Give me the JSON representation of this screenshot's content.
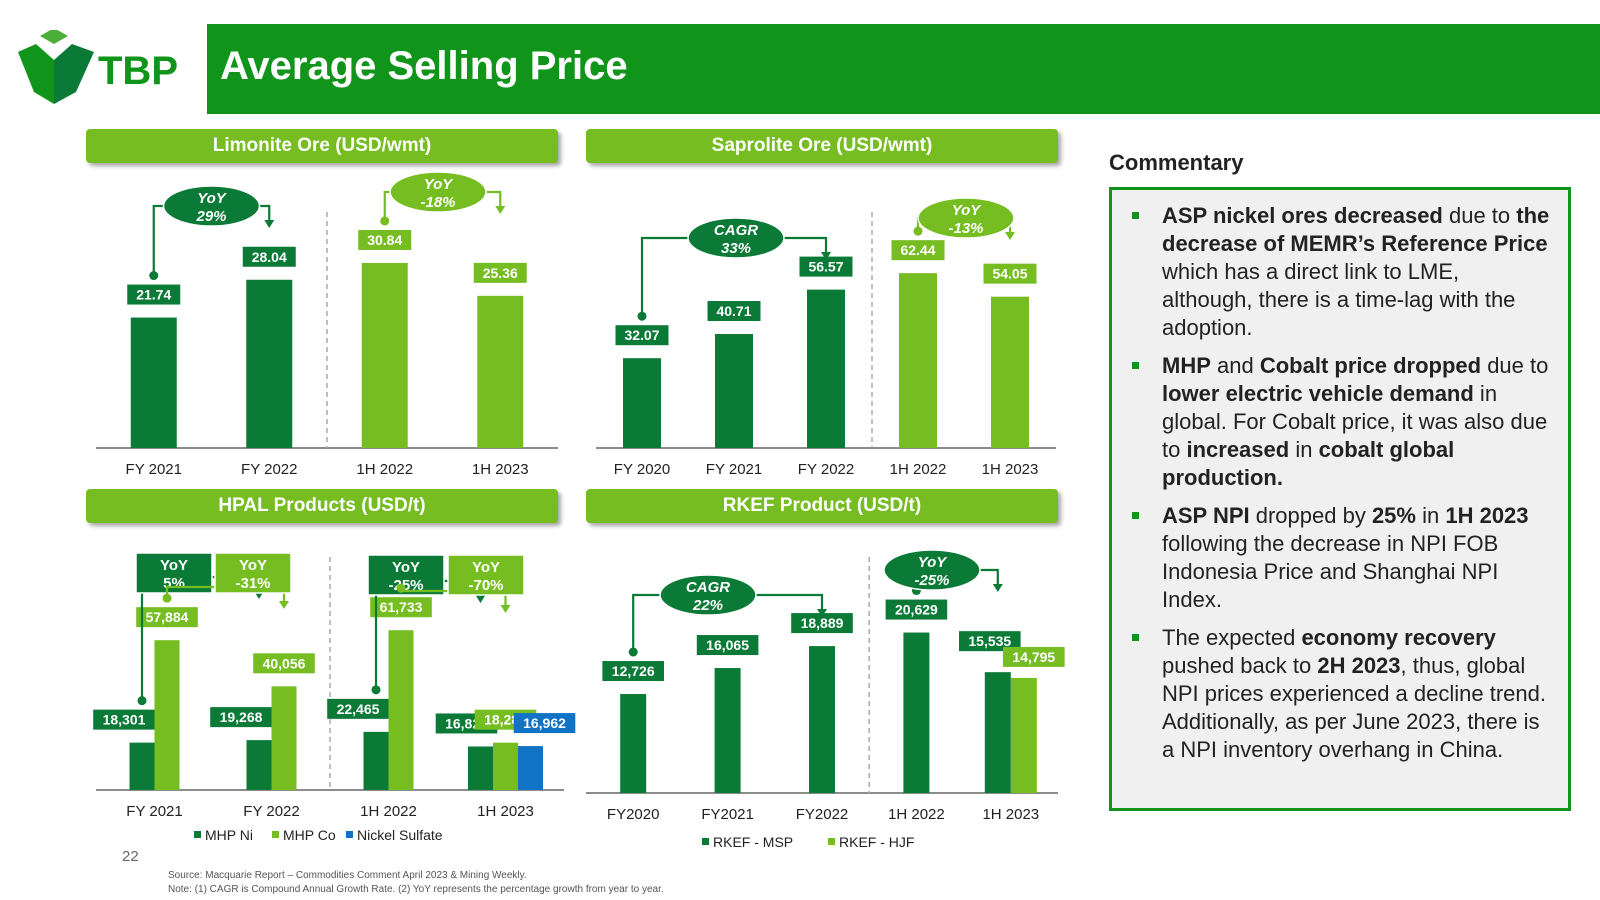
{
  "brand": {
    "logo_text": "TBP"
  },
  "header": {
    "title": "Average Selling Price"
  },
  "panels": {
    "limonite": {
      "title": "Limonite Ore (USD/wmt)"
    },
    "saprolite": {
      "title": "Saprolite Ore (USD/wmt)"
    },
    "hpal": {
      "title": "HPAL Products (USD/t)"
    },
    "rkef": {
      "title": "RKEF Product (USD/t)"
    }
  },
  "colors": {
    "dark_green": "#0b7a37",
    "light_green": "#76bd22",
    "blue": "#1173c6",
    "header_green": "#10941a"
  },
  "chart_data": [
    {
      "id": "limonite",
      "type": "bar",
      "title": "Limonite Ore (USD/wmt)",
      "categories": [
        "FY 2021",
        "FY 2022",
        "1H 2022",
        "1H 2023"
      ],
      "values": [
        21.74,
        28.04,
        30.84,
        25.36
      ],
      "labels": [
        "21.74",
        "28.04",
        "30.84",
        "25.36"
      ],
      "bar_colors": [
        "#0b7a37",
        "#0b7a37",
        "#76bd22",
        "#76bd22"
      ],
      "ylim": [
        0,
        40
      ],
      "annotations": [
        {
          "line1": "YoY",
          "line2": "29%",
          "from": 0,
          "to": 1,
          "color": "#0b7a37",
          "shape": "ellipse"
        },
        {
          "line1": "YoY",
          "line2": "-18%",
          "from": 2,
          "to": 3,
          "color": "#76bd22",
          "shape": "ellipse"
        }
      ]
    },
    {
      "id": "saprolite",
      "type": "bar",
      "title": "Saprolite Ore (USD/wmt)",
      "categories": [
        "FY 2020",
        "FY 2021",
        "FY 2022",
        "1H 2022",
        "1H 2023"
      ],
      "values": [
        32.07,
        40.71,
        56.57,
        62.44,
        54.05
      ],
      "labels": [
        "32.07",
        "40.71",
        "56.57",
        "62.44",
        "54.05"
      ],
      "bar_colors": [
        "#0b7a37",
        "#0b7a37",
        "#0b7a37",
        "#76bd22",
        "#76bd22"
      ],
      "ylim": [
        0,
        85
      ],
      "annotations": [
        {
          "line1": "CAGR",
          "line2": "33%",
          "from": 0,
          "to": 2,
          "color": "#0b7a37",
          "shape": "ellipse"
        },
        {
          "line1": "YoY",
          "line2": "-13%",
          "from": 3,
          "to": 4,
          "color": "#76bd22",
          "shape": "ellipse"
        }
      ]
    },
    {
      "id": "hpal",
      "type": "bar",
      "title": "HPAL Products (USD/t)",
      "categories": [
        "FY 2021",
        "FY 2022",
        "1H 2022",
        "1H 2023"
      ],
      "series": [
        {
          "name": "MHP Ni",
          "color": "#0b7a37",
          "values": [
            18301,
            19268,
            22465,
            16821
          ],
          "labels": [
            "18,301",
            "19,268",
            "22,465",
            "16,821"
          ]
        },
        {
          "name": "MHP Co",
          "color": "#76bd22",
          "values": [
            57884,
            40056,
            61733,
            18281
          ],
          "labels": [
            "57,884",
            "40,056",
            "61,733",
            "18,281"
          ]
        },
        {
          "name": "Nickel Sulfate",
          "color": "#1173c6",
          "values": [
            null,
            null,
            null,
            16962
          ],
          "labels": [
            "",
            "",
            "",
            "16,962"
          ]
        }
      ],
      "ylim": [
        0,
        85000
      ],
      "annotations": [
        {
          "line1": "YoY",
          "line2": "5%",
          "from": 0,
          "to": 1,
          "color": "#0b7a37",
          "shape": "box",
          "series": 0
        },
        {
          "line1": "YoY",
          "line2": "-31%",
          "from": 0,
          "to": 1,
          "color": "#76bd22",
          "shape": "box",
          "series": 1
        },
        {
          "line1": "YoY",
          "line2": "-25%",
          "from": 2,
          "to": 3,
          "color": "#0b7a37",
          "shape": "box",
          "series": 0
        },
        {
          "line1": "YoY",
          "line2": "-70%",
          "from": 2,
          "to": 3,
          "color": "#76bd22",
          "shape": "box",
          "series": 1
        }
      ]
    },
    {
      "id": "rkef",
      "type": "bar",
      "title": "RKEF Product (USD/t)",
      "categories": [
        "FY2020",
        "FY2021",
        "FY2022",
        "1H 2022",
        "1H 2023"
      ],
      "series": [
        {
          "name": "RKEF - MSP",
          "color": "#0b7a37",
          "values": [
            12726,
            16065,
            18889,
            20629,
            15535
          ],
          "labels": [
            "12,726",
            "16,065",
            "18,889",
            "20,629",
            "15,535"
          ]
        },
        {
          "name": "RKEF - HJF",
          "color": "#76bd22",
          "values": [
            null,
            null,
            null,
            null,
            14795
          ],
          "labels": [
            "",
            "",
            "",
            "",
            "14,795"
          ]
        }
      ],
      "ylim": [
        0,
        27000
      ],
      "annotations": [
        {
          "line1": "CAGR",
          "line2": "22%",
          "from": 0,
          "to": 2,
          "color": "#0b7a37",
          "shape": "ellipse"
        },
        {
          "line1": "YoY",
          "line2": "-25%",
          "from": 3,
          "to": 4,
          "color": "#0b7a37",
          "shape": "ellipse"
        }
      ]
    }
  ],
  "commentary": {
    "title": "Commentary",
    "items": [
      [
        {
          "t": "ASP nickel ores decreased",
          "b": true
        },
        {
          "t": " due to ",
          "b": false
        },
        {
          "t": "the decrease of MEMR’s Reference Price",
          "b": true
        },
        {
          "t": " which has a direct link to LME, although, there is a time-lag with the adoption.",
          "b": false
        }
      ],
      [
        {
          "t": "MHP",
          "b": true
        },
        {
          "t": " and ",
          "b": false
        },
        {
          "t": "Cobalt price dropped",
          "b": true
        },
        {
          "t": " due to ",
          "b": false
        },
        {
          "t": "lower electric vehicle demand",
          "b": true
        },
        {
          "t": " in global. For Cobalt price, it was also due to ",
          "b": false
        },
        {
          "t": "increased",
          "b": true
        },
        {
          "t": " in ",
          "b": false
        },
        {
          "t": "cobalt global production.",
          "b": true
        }
      ],
      [
        {
          "t": "ASP NPI",
          "b": true
        },
        {
          "t": " dropped by ",
          "b": false
        },
        {
          "t": "25%",
          "b": true
        },
        {
          "t": " in ",
          "b": false
        },
        {
          "t": "1H 2023",
          "b": true
        },
        {
          "t": " following the decrease in NPI FOB Indonesia Price and Shanghai NPI Index.",
          "b": false
        }
      ],
      [
        {
          "t": "The expected ",
          "b": false
        },
        {
          "t": "economy recovery",
          "b": true
        },
        {
          "t": " pushed back to ",
          "b": false
        },
        {
          "t": "2H 2023",
          "b": true
        },
        {
          "t": ", thus, global NPI prices experienced a decline trend. Additionally, as per June 2023, there is a NPI inventory overhang in China.",
          "b": false
        }
      ]
    ]
  },
  "footer": {
    "page_number": "22",
    "source": "Source: Macquarie Report – Commodities Comment April 2023 & Mining Weekly.",
    "note": "Note: (1) CAGR is Compound Annual Growth Rate. (2) YoY represents the percentage growth from year to year."
  }
}
